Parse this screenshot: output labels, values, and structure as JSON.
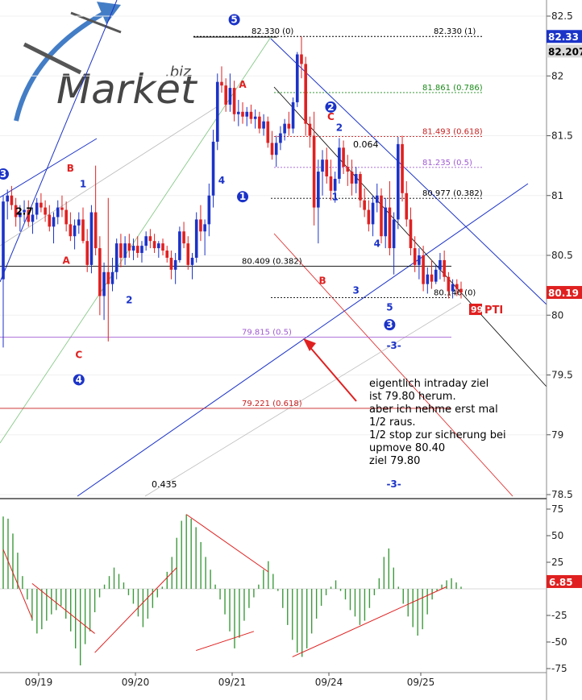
{
  "chart_data": {
    "type": "candlestick",
    "watermark": "Market.biz",
    "price_axis": {
      "ylim": [
        78.5,
        82.5
      ],
      "ticks": [
        82.5,
        82,
        81.5,
        81,
        80.5,
        80,
        79.5,
        79,
        78.5
      ],
      "tick_labels": [
        "82.5",
        "82",
        "81.5",
        "81",
        "80.5",
        "80",
        "79.5",
        "79",
        "78.5"
      ],
      "current_price_labels": [
        {
          "text": "82.33",
          "value": 82.33,
          "color": "#1b33c8"
        },
        {
          "text": "82.2077",
          "value": 82.2077,
          "color": "#d9d9d9"
        },
        {
          "text": "80.19",
          "value": 80.19,
          "color": "#e02020"
        }
      ]
    },
    "date_axis": {
      "labels": [
        "09/19",
        "09/20",
        "09/21",
        "09/24",
        "09/25"
      ]
    },
    "candles": [
      [
        80.3,
        81.0,
        79.73,
        80.95
      ],
      [
        80.95,
        81.05,
        80.8,
        81.0
      ],
      [
        81.0,
        81.08,
        80.88,
        80.92
      ],
      [
        80.92,
        80.98,
        80.74,
        80.82
      ],
      [
        80.82,
        80.92,
        80.7,
        80.86
      ],
      [
        80.86,
        80.96,
        80.78,
        80.88
      ],
      [
        80.88,
        80.96,
        80.74,
        80.78
      ],
      [
        80.78,
        80.9,
        80.68,
        80.84
      ],
      [
        80.84,
        80.98,
        80.8,
        80.94
      ],
      [
        80.94,
        81.02,
        80.86,
        80.9
      ],
      [
        80.9,
        80.96,
        80.78,
        80.84
      ],
      [
        80.84,
        80.92,
        80.7,
        80.74
      ],
      [
        80.74,
        80.86,
        80.6,
        80.82
      ],
      [
        80.82,
        80.96,
        80.76,
        80.9
      ],
      [
        80.9,
        81.0,
        80.82,
        80.88
      ],
      [
        80.88,
        80.95,
        80.7,
        80.76
      ],
      [
        80.76,
        80.86,
        80.62,
        80.66
      ],
      [
        80.66,
        80.8,
        80.55,
        80.75
      ],
      [
        80.75,
        80.86,
        80.68,
        80.8
      ],
      [
        80.8,
        80.9,
        80.6,
        80.62
      ],
      [
        80.62,
        80.72,
        80.36,
        80.42
      ],
      [
        80.42,
        80.92,
        80.35,
        80.86
      ],
      [
        80.86,
        81.25,
        80.5,
        80.56
      ],
      [
        80.56,
        80.66,
        80.0,
        80.16
      ],
      [
        80.16,
        80.44,
        79.96,
        80.36
      ],
      [
        80.36,
        80.98,
        79.78,
        80.26
      ],
      [
        80.26,
        80.48,
        80.2,
        80.36
      ],
      [
        80.36,
        80.64,
        80.3,
        80.6
      ],
      [
        80.6,
        80.68,
        80.4,
        80.48
      ],
      [
        80.48,
        80.66,
        80.42,
        80.6
      ],
      [
        80.6,
        80.68,
        80.48,
        80.54
      ],
      [
        80.54,
        80.64,
        80.46,
        80.58
      ],
      [
        80.58,
        80.66,
        80.48,
        80.52
      ],
      [
        80.52,
        80.62,
        80.44,
        80.58
      ],
      [
        80.58,
        80.7,
        80.54,
        80.66
      ],
      [
        80.66,
        80.72,
        80.56,
        80.62
      ],
      [
        80.62,
        80.68,
        80.52,
        80.56
      ],
      [
        80.56,
        80.62,
        80.48,
        80.6
      ],
      [
        80.6,
        80.64,
        80.5,
        80.54
      ],
      [
        80.54,
        80.58,
        80.44,
        80.48
      ],
      [
        80.48,
        80.54,
        80.3,
        80.38
      ],
      [
        80.38,
        80.52,
        80.26,
        80.46
      ],
      [
        80.46,
        80.74,
        80.44,
        80.7
      ],
      [
        80.7,
        80.78,
        80.56,
        80.6
      ],
      [
        80.6,
        80.66,
        80.38,
        80.42
      ],
      [
        80.42,
        80.52,
        80.3,
        80.48
      ],
      [
        80.48,
        80.86,
        80.44,
        80.8
      ],
      [
        80.8,
        80.92,
        80.62,
        80.7
      ],
      [
        80.7,
        80.8,
        80.5,
        80.76
      ],
      [
        80.76,
        81.1,
        80.66,
        81.0
      ],
      [
        81.0,
        81.55,
        80.9,
        81.45
      ],
      [
        81.45,
        82.02,
        81.38,
        81.95
      ],
      [
        81.95,
        82.08,
        81.86,
        81.92
      ],
      [
        81.92,
        81.98,
        81.7,
        81.76
      ],
      [
        81.76,
        82.02,
        81.7,
        81.9
      ],
      [
        81.9,
        81.96,
        81.62,
        81.68
      ],
      [
        81.68,
        81.8,
        81.58,
        81.7
      ],
      [
        81.7,
        81.78,
        81.6,
        81.66
      ],
      [
        81.66,
        81.74,
        81.58,
        81.7
      ],
      [
        81.7,
        81.76,
        81.6,
        81.64
      ],
      [
        81.64,
        81.72,
        81.56,
        81.66
      ],
      [
        81.66,
        81.7,
        81.52,
        81.56
      ],
      [
        81.56,
        81.68,
        81.5,
        81.62
      ],
      [
        81.62,
        81.66,
        81.4,
        81.44
      ],
      [
        81.44,
        81.54,
        81.3,
        81.34
      ],
      [
        81.34,
        81.5,
        81.24,
        81.44
      ],
      [
        81.44,
        81.58,
        81.38,
        81.52
      ],
      [
        81.52,
        81.64,
        81.46,
        81.6
      ],
      [
        81.6,
        81.7,
        81.5,
        81.56
      ],
      [
        81.56,
        81.82,
        81.52,
        81.78
      ],
      [
        81.78,
        82.2,
        81.74,
        82.18
      ],
      [
        82.18,
        82.33,
        81.98,
        82.1
      ],
      [
        82.1,
        82.16,
        81.5,
        81.6
      ],
      [
        81.6,
        81.66,
        81.4,
        81.5
      ],
      [
        81.5,
        81.7,
        80.75,
        80.9
      ],
      [
        80.9,
        81.3,
        80.6,
        81.2
      ],
      [
        81.2,
        81.38,
        81.0,
        81.3
      ],
      [
        81.3,
        81.4,
        81.1,
        81.16
      ],
      [
        81.16,
        81.3,
        80.96,
        81.04
      ],
      [
        81.04,
        81.2,
        80.94,
        81.14
      ],
      [
        81.14,
        81.48,
        81.1,
        81.4
      ],
      [
        81.4,
        81.46,
        81.18,
        81.24
      ],
      [
        81.24,
        81.34,
        81.08,
        81.2
      ],
      [
        81.2,
        81.3,
        81.0,
        81.1
      ],
      [
        81.1,
        81.24,
        81.02,
        81.18
      ],
      [
        81.18,
        81.2,
        80.9,
        80.96
      ],
      [
        80.96,
        81.06,
        80.82,
        80.88
      ],
      [
        80.88,
        80.96,
        80.7,
        80.76
      ],
      [
        80.76,
        81.0,
        80.66,
        80.94
      ],
      [
        80.94,
        81.1,
        80.86,
        81.0
      ],
      [
        81.0,
        81.06,
        80.6,
        80.66
      ],
      [
        80.66,
        80.98,
        80.56,
        80.9
      ],
      [
        80.9,
        81.12,
        80.5,
        80.56
      ],
      [
        80.56,
        80.86,
        80.34,
        80.8
      ],
      [
        80.8,
        81.49,
        80.72,
        81.43
      ],
      [
        81.43,
        81.5,
        80.95,
        81.02
      ],
      [
        81.02,
        81.12,
        80.74,
        80.8
      ],
      [
        80.8,
        80.9,
        80.5,
        80.56
      ],
      [
        80.56,
        80.66,
        80.36,
        80.42
      ],
      [
        80.42,
        80.56,
        80.3,
        80.5
      ],
      [
        80.5,
        80.58,
        80.2,
        80.26
      ],
      [
        80.26,
        80.4,
        80.18,
        80.34
      ],
      [
        80.34,
        80.46,
        80.22,
        80.28
      ],
      [
        80.28,
        80.42,
        80.26,
        80.38
      ],
      [
        80.38,
        80.52,
        80.3,
        80.46
      ],
      [
        80.46,
        80.54,
        80.28,
        80.32
      ],
      [
        80.32,
        80.36,
        80.14,
        80.2
      ],
      [
        80.2,
        80.3,
        80.14,
        80.26
      ],
      [
        80.26,
        80.3,
        80.16,
        80.22
      ],
      [
        80.22,
        80.28,
        80.14,
        80.19
      ]
    ],
    "fib_levels": [
      {
        "value": 82.33,
        "label": "82.330 (0)",
        "label2": "82.330 (1)",
        "color": "#000000"
      },
      {
        "value": 81.861,
        "label": "81.861 (0.786)",
        "color": "#1a8a1a"
      },
      {
        "value": 81.493,
        "label": "81.493 (0.618)",
        "color": "#c81e1e"
      },
      {
        "value": 81.235,
        "label": "81.235 (0.5)",
        "color": "#a05ad2"
      },
      {
        "value": 80.977,
        "label": "80.977 (0.382)",
        "color": "#000000"
      },
      {
        "value": 80.409,
        "label": "80.409 (0.382)",
        "color": "#000000"
      },
      {
        "value": 80.146,
        "label": "80.146 (0)",
        "color": "#000000"
      },
      {
        "value": 79.815,
        "label": "79.815 (0.5)",
        "color": "#a05ad2"
      },
      {
        "value": 79.221,
        "label": "79.221 (0.618)",
        "color": "#c81e1e"
      }
    ],
    "wave_labels": [
      {
        "text": "3",
        "style": "circle",
        "color": "#1b33c8",
        "price": 81.18,
        "bar": 0
      },
      {
        "text": "2.7",
        "style": "plain",
        "color": "#000000",
        "price": 80.84,
        "bar": 5
      },
      {
        "text": "A",
        "style": "plain",
        "color": "#e02020",
        "price": 80.43,
        "bar": 15
      },
      {
        "text": "B",
        "style": "plain",
        "color": "#e02020",
        "price": 81.2,
        "bar": 16
      },
      {
        "text": "1",
        "style": "plain",
        "color": "#1b33c8",
        "price": 81.07,
        "bar": 19
      },
      {
        "text": "C",
        "style": "plain",
        "color": "#e02020",
        "price": 79.64,
        "bar": 18
      },
      {
        "text": "4",
        "style": "circle",
        "color": "#1b33c8",
        "price": 79.46,
        "bar": 18
      },
      {
        "text": "2",
        "style": "plain",
        "color": "#1b33c8",
        "price": 80.1,
        "bar": 30
      },
      {
        "text": "4",
        "style": "plain",
        "color": "#1b33c8",
        "price": 81.1,
        "bar": 52
      },
      {
        "text": "5",
        "style": "circle",
        "color": "#1b33c8",
        "price": 82.47,
        "bar": 55
      },
      {
        "text": "A",
        "style": "plain",
        "color": "#e02020",
        "price": 81.9,
        "bar": 57
      },
      {
        "text": "1",
        "style": "circle",
        "color": "#1b33c8",
        "price": 80.99,
        "bar": 57
      },
      {
        "text": "2",
        "style": "circle",
        "color": "#1b33c8",
        "price": 81.74,
        "bar": 78
      },
      {
        "text": "C",
        "style": "plain",
        "color": "#e02020",
        "price": 81.63,
        "bar": 78
      },
      {
        "text": "2",
        "style": "plain",
        "color": "#1b33c8",
        "price": 81.54,
        "bar": 80
      },
      {
        "text": "1",
        "style": "plain",
        "color": "#1b33c8",
        "price": 80.96,
        "bar": 79
      },
      {
        "text": "B",
        "style": "plain",
        "color": "#e02020",
        "price": 80.26,
        "bar": 76
      },
      {
        "text": "3",
        "style": "plain",
        "color": "#1b33c8",
        "price": 80.18,
        "bar": 84
      },
      {
        "text": "4",
        "style": "plain",
        "color": "#1b33c8",
        "price": 80.57,
        "bar": 89
      },
      {
        "text": "5",
        "style": "plain",
        "color": "#1b33c8",
        "price": 80.04,
        "bar": 92
      },
      {
        "text": "3",
        "style": "circle",
        "color": "#1b33c8",
        "price": 79.92,
        "bar": 92
      },
      {
        "text": "-3-",
        "style": "plain",
        "color": "#1b33c8",
        "price": 79.72,
        "bar": 93
      },
      {
        "text": "-3-",
        "style": "plain",
        "color": "#1b33c8",
        "price": 78.56,
        "bar": 93
      }
    ],
    "annotations": [
      "0.064",
      "0.435",
      "PTI",
      "99"
    ],
    "note_lines": [
      "eigentlich intraday ziel",
      "ist 79.80 herum.",
      "",
      "aber ich nehme erst mal",
      "1/2 raus.",
      "1/2 stop zur sicherung bei",
      "upmove 80.40",
      "ziel 79.80"
    ],
    "oscillator": {
      "type": "histogram",
      "ylim": [
        -75,
        75
      ],
      "ticks": [
        75,
        50,
        25,
        -25,
        -50,
        -75
      ],
      "tick_labels": [
        "75",
        "50",
        "25",
        "-25",
        "-50",
        "-75"
      ],
      "current_label": "6.85",
      "current_value": 6.85,
      "values": [
        68,
        66,
        52,
        34,
        12,
        -10,
        -30,
        -42,
        -38,
        -30,
        -24,
        -20,
        -16,
        -28,
        -40,
        -56,
        -72,
        -52,
        -40,
        -22,
        -8,
        4,
        12,
        20,
        14,
        6,
        -6,
        -14,
        -26,
        -36,
        -28,
        -18,
        -8,
        2,
        16,
        30,
        48,
        64,
        70,
        66,
        58,
        44,
        30,
        18,
        4,
        -10,
        -24,
        -40,
        -56,
        -46,
        -30,
        -18,
        -8,
        4,
        18,
        26,
        14,
        -2,
        -18,
        -34,
        -48,
        -60,
        -64,
        -56,
        -42,
        -28,
        -16,
        -6,
        2,
        8,
        -2,
        -10,
        -20,
        -26,
        -34,
        -30,
        -18,
        -6,
        10,
        30,
        38,
        20,
        2,
        -14,
        -26,
        -36,
        -44,
        -38,
        -24,
        -10,
        -2,
        4,
        8,
        10,
        6,
        2
      ]
    }
  }
}
